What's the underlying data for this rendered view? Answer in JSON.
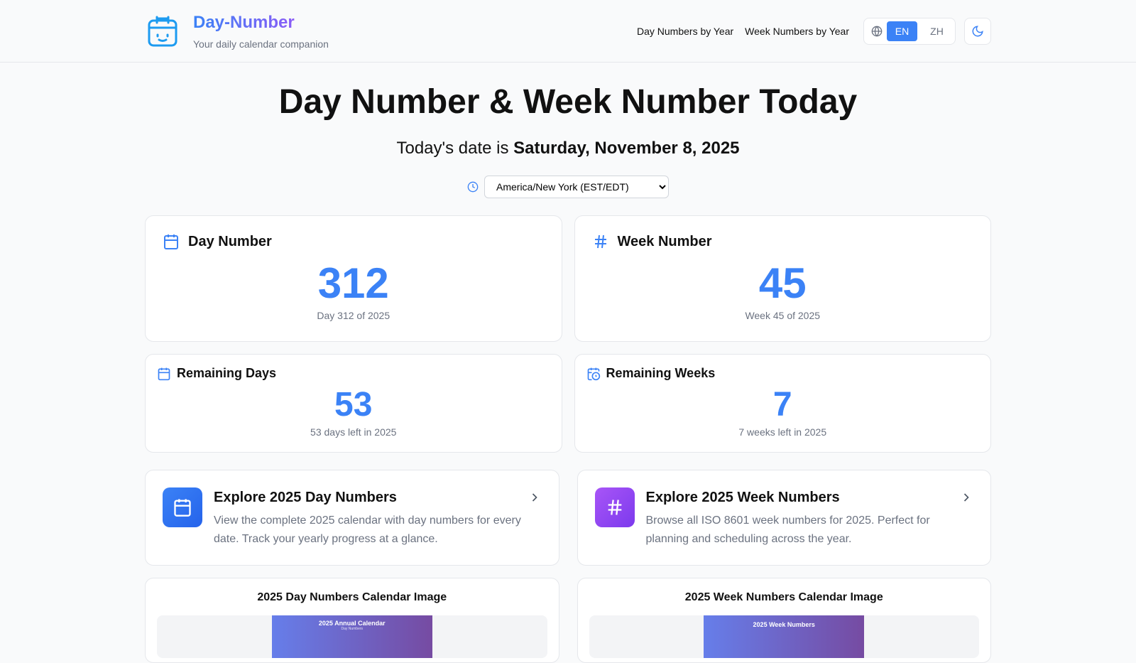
{
  "header": {
    "brand": "Day-Number",
    "tagline": "Your daily calendar companion",
    "nav": [
      "Day Numbers by Year",
      "Week Numbers by Year"
    ],
    "lang": [
      "EN",
      "ZH"
    ],
    "active_lang": "EN"
  },
  "main": {
    "title": "Day Number & Week Number Today",
    "today_prefix": "Today's date is ",
    "today_date": "Saturday, November 8, 2025",
    "timezone": "America/New York (EST/EDT)"
  },
  "cards": {
    "day": {
      "title": "Day Number",
      "value": "312",
      "sub": "Day 312 of 2025"
    },
    "week": {
      "title": "Week Number",
      "value": "45",
      "sub": "Week 45 of 2025"
    },
    "rem_days": {
      "title": "Remaining Days",
      "value": "53",
      "sub": "53 days left in 2025"
    },
    "rem_weeks": {
      "title": "Remaining Weeks",
      "value": "7",
      "sub": "7 weeks left in 2025"
    }
  },
  "explore": [
    {
      "title": "Explore 2025 Day Numbers",
      "desc": "View the complete 2025 calendar with day numbers for every date. Track your yearly progress at a glance."
    },
    {
      "title": "Explore 2025 Week Numbers",
      "desc": "Browse all ISO 8601 week numbers for 2025. Perfect for planning and scheduling across the year."
    }
  ],
  "images": [
    {
      "title": "2025 Day Numbers Calendar Image",
      "pic_title": "2025 Annual Calendar",
      "pic_sub": "Day Numbers"
    },
    {
      "title": "2025 Week Numbers Calendar Image",
      "pic_title": "2025 Week Numbers"
    }
  ],
  "colors": {
    "accent": "#3b82f6",
    "purple": "#8b5cf6"
  }
}
